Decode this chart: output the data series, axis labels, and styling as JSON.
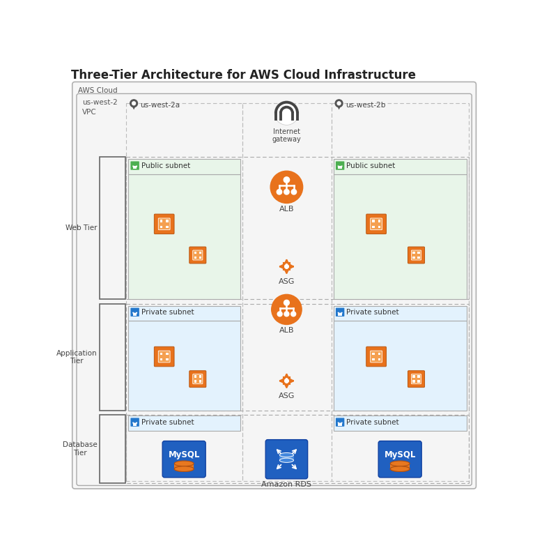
{
  "title": "Three-Tier Architecture for AWS Cloud Infrastructure",
  "title_fontsize": 12,
  "bg_color": "#ffffff",
  "aws_cloud_label": "AWS Cloud",
  "vpc_label": "VPC",
  "region_label": "us-west-2",
  "az1_label": "us-west-2a",
  "az2_label": "us-west-2b",
  "internet_gateway_label": "Internet\ngateway",
  "alb_label": "ALB",
  "asg_label": "ASG",
  "amazon_rds_label": "Amazon RDS",
  "web_tier_label": "Web Tier",
  "app_tier_label": "Application\nTier",
  "db_tier_label": "Database\nTier",
  "public_subnet_label": "Public subnet",
  "private_subnet_label": "Private subnet",
  "web_subnet_bg": "#e8f5e9",
  "app_subnet_bg": "#e3f2fd",
  "orange": "#e8721c",
  "orange_mid": "#f08030",
  "green_lock": "#3d8a3d",
  "blue_lock": "#1a6abf",
  "blue_rds": "#2255b8",
  "gray_text": "#555555",
  "white": "#ffffff",
  "outer_bg": "#f7f7f7",
  "inner_bg": "#f0f0f0"
}
